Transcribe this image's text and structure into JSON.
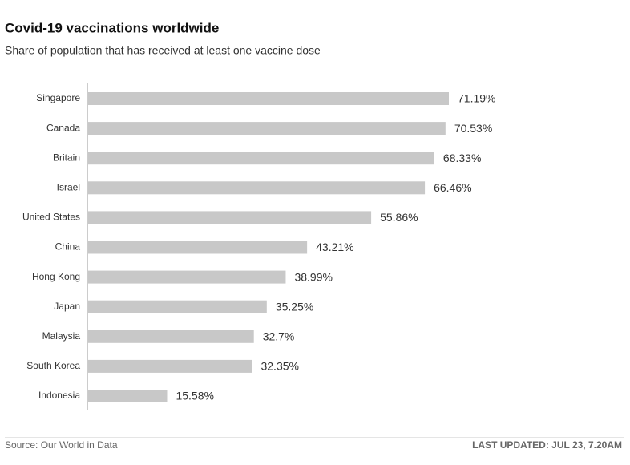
{
  "chart_data": {
    "type": "bar",
    "orientation": "horizontal",
    "title": "Covid-19 vaccinations worldwide",
    "subtitle": "Share of population that has received at least one vaccine dose",
    "categories": [
      "Singapore",
      "Canada",
      "Britain",
      "Israel",
      "United States",
      "China",
      "Hong Kong",
      "Japan",
      "Malaysia",
      "South Korea",
      "Indonesia"
    ],
    "values": [
      71.19,
      70.53,
      68.33,
      66.46,
      55.86,
      43.21,
      38.99,
      35.25,
      32.7,
      32.35,
      15.58
    ],
    "value_labels": [
      "71.19%",
      "70.53%",
      "68.33%",
      "66.46%",
      "55.86%",
      "43.21%",
      "38.99%",
      "35.25%",
      "32.7%",
      "32.35%",
      "15.58%"
    ],
    "color": "#c8c8c8",
    "source": "Source: Our World in Data",
    "updated": "LAST UPDATED: JUL 23, 7.20AM"
  }
}
